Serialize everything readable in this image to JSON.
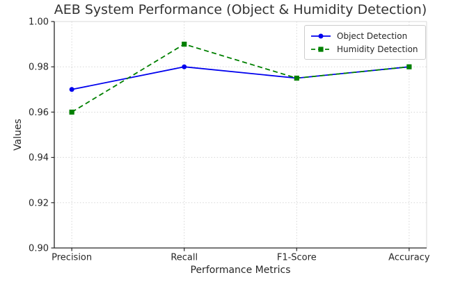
{
  "chart_data": {
    "type": "line",
    "title": "AEB System Performance (Object & Humidity Detection)",
    "xlabel": "Performance Metrics",
    "ylabel": "Values",
    "categories": [
      "Precision",
      "Recall",
      "F1-Score",
      "Accuracy"
    ],
    "series": [
      {
        "name": "Object Detection",
        "values": [
          0.97,
          0.98,
          0.975,
          0.98
        ],
        "color": "#0000ee",
        "line_style": "solid",
        "marker": "circle"
      },
      {
        "name": "Humidity Detection",
        "values": [
          0.96,
          0.99,
          0.975,
          0.98
        ],
        "color": "#008000",
        "line_style": "dashed",
        "marker": "square"
      }
    ],
    "ylim": [
      0.9,
      1.0
    ],
    "yticks": {
      "values": [
        1.0,
        0.98,
        0.96,
        0.94,
        0.92,
        0.9
      ],
      "labels": [
        "1.00",
        "0.98",
        "0.96",
        "0.94",
        "0.92",
        "0.90"
      ]
    },
    "grid": "dotted",
    "grid_color": "#d0d0d0",
    "axis_color": "#262626",
    "legend_position": "upper right"
  }
}
